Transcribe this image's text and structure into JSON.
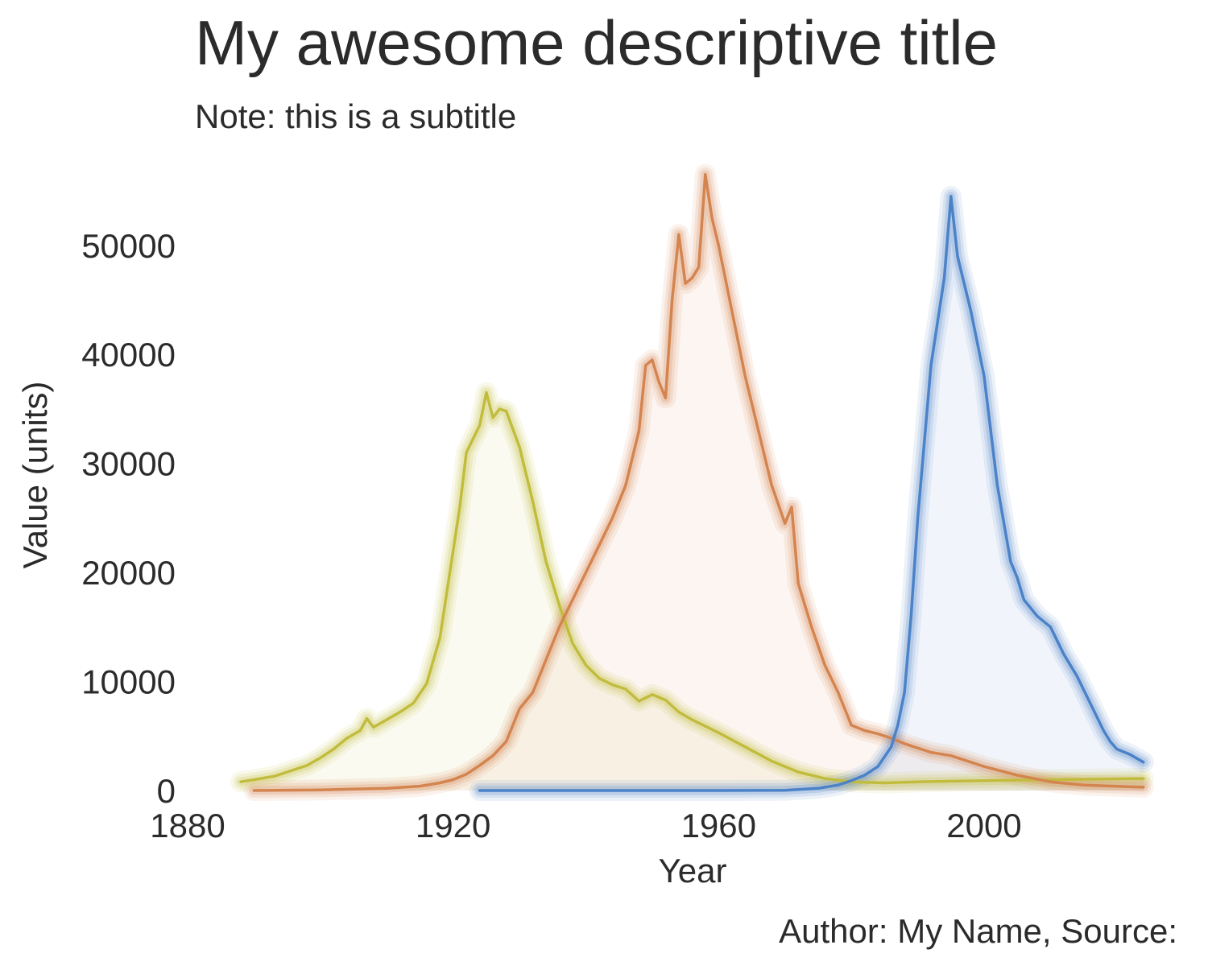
{
  "title": "My awesome descriptive title",
  "subtitle": "Note: this is a subtitle",
  "caption": "Author: My Name, Source:",
  "chart_data": {
    "type": "area",
    "xlabel": "Year",
    "ylabel": "Value (units)",
    "xlim": [
      1880,
      2025
    ],
    "ylim": [
      0,
      57000
    ],
    "x_ticks": [
      1880,
      1920,
      1960,
      2000
    ],
    "y_ticks": [
      0,
      10000,
      20000,
      30000,
      40000,
      50000
    ],
    "grid": false,
    "legend": "none",
    "series": [
      {
        "color": "#c2bc3e",
        "x": [
          1888,
          1890,
          1893,
          1895,
          1898,
          1900,
          1902,
          1904,
          1906,
          1907,
          1908,
          1910,
          1912,
          1914,
          1916,
          1918,
          1920,
          1921,
          1922,
          1924,
          1925,
          1926,
          1927,
          1928,
          1930,
          1932,
          1934,
          1936,
          1938,
          1940,
          1942,
          1944,
          1946,
          1948,
          1950,
          1952,
          1954,
          1956,
          1958,
          1960,
          1964,
          1968,
          1972,
          1976,
          1980,
          1985,
          1990,
          2000,
          2010,
          2024
        ],
        "values": [
          800,
          1000,
          1300,
          1700,
          2300,
          3000,
          3800,
          4800,
          5500,
          6600,
          5800,
          6500,
          7200,
          8000,
          9800,
          14000,
          22000,
          26000,
          31000,
          33500,
          36500,
          34200,
          35000,
          34800,
          31500,
          26500,
          21000,
          17000,
          13500,
          11500,
          10300,
          9700,
          9300,
          8200,
          8800,
          8300,
          7200,
          6500,
          5900,
          5300,
          4000,
          2700,
          1700,
          1100,
          800,
          700,
          800,
          900,
          1000,
          1100
        ]
      },
      {
        "color": "#d4844f",
        "x": [
          1890,
          1900,
          1910,
          1915,
          1918,
          1920,
          1922,
          1924,
          1926,
          1928,
          1930,
          1932,
          1934,
          1936,
          1938,
          1940,
          1942,
          1944,
          1946,
          1948,
          1949,
          1950,
          1951,
          1952,
          1953,
          1954,
          1955,
          1956,
          1957,
          1958,
          1959,
          1960,
          1962,
          1964,
          1966,
          1968,
          1970,
          1971,
          1972,
          1974,
          1976,
          1978,
          1980,
          1982,
          1984,
          1986,
          1988,
          1990,
          1992,
          1995,
          2000,
          2005,
          2010,
          2015,
          2024
        ],
        "values": [
          0,
          50,
          200,
          400,
          700,
          1000,
          1500,
          2300,
          3200,
          4500,
          7500,
          9000,
          12000,
          15000,
          17500,
          20000,
          22500,
          25000,
          28000,
          33000,
          39000,
          39500,
          37500,
          36000,
          45000,
          51000,
          46500,
          47000,
          48000,
          56500,
          52500,
          50000,
          44000,
          38000,
          33000,
          28000,
          24500,
          26000,
          19000,
          15000,
          11500,
          9000,
          6000,
          5500,
          5200,
          4800,
          4300,
          3900,
          3500,
          3200,
          2200,
          1400,
          800,
          500,
          300
        ]
      },
      {
        "color": "#4b82c8",
        "x": [
          1924,
          1930,
          1940,
          1950,
          1960,
          1970,
          1975,
          1978,
          1980,
          1982,
          1984,
          1986,
          1987,
          1988,
          1989,
          1990,
          1992,
          1994,
          1995,
          1996,
          1998,
          2000,
          2002,
          2004,
          2005,
          2006,
          2008,
          2010,
          2012,
          2014,
          2016,
          2018,
          2019,
          2020,
          2022,
          2024
        ],
        "values": [
          0,
          0,
          0,
          0,
          0,
          20,
          200,
          500,
          900,
          1400,
          2200,
          4000,
          6000,
          9000,
          16000,
          25000,
          39000,
          47000,
          54500,
          49000,
          44000,
          38000,
          28000,
          21000,
          19500,
          17500,
          16000,
          15000,
          12500,
          10500,
          8000,
          5500,
          4500,
          3800,
          3300,
          2600
        ]
      }
    ]
  }
}
